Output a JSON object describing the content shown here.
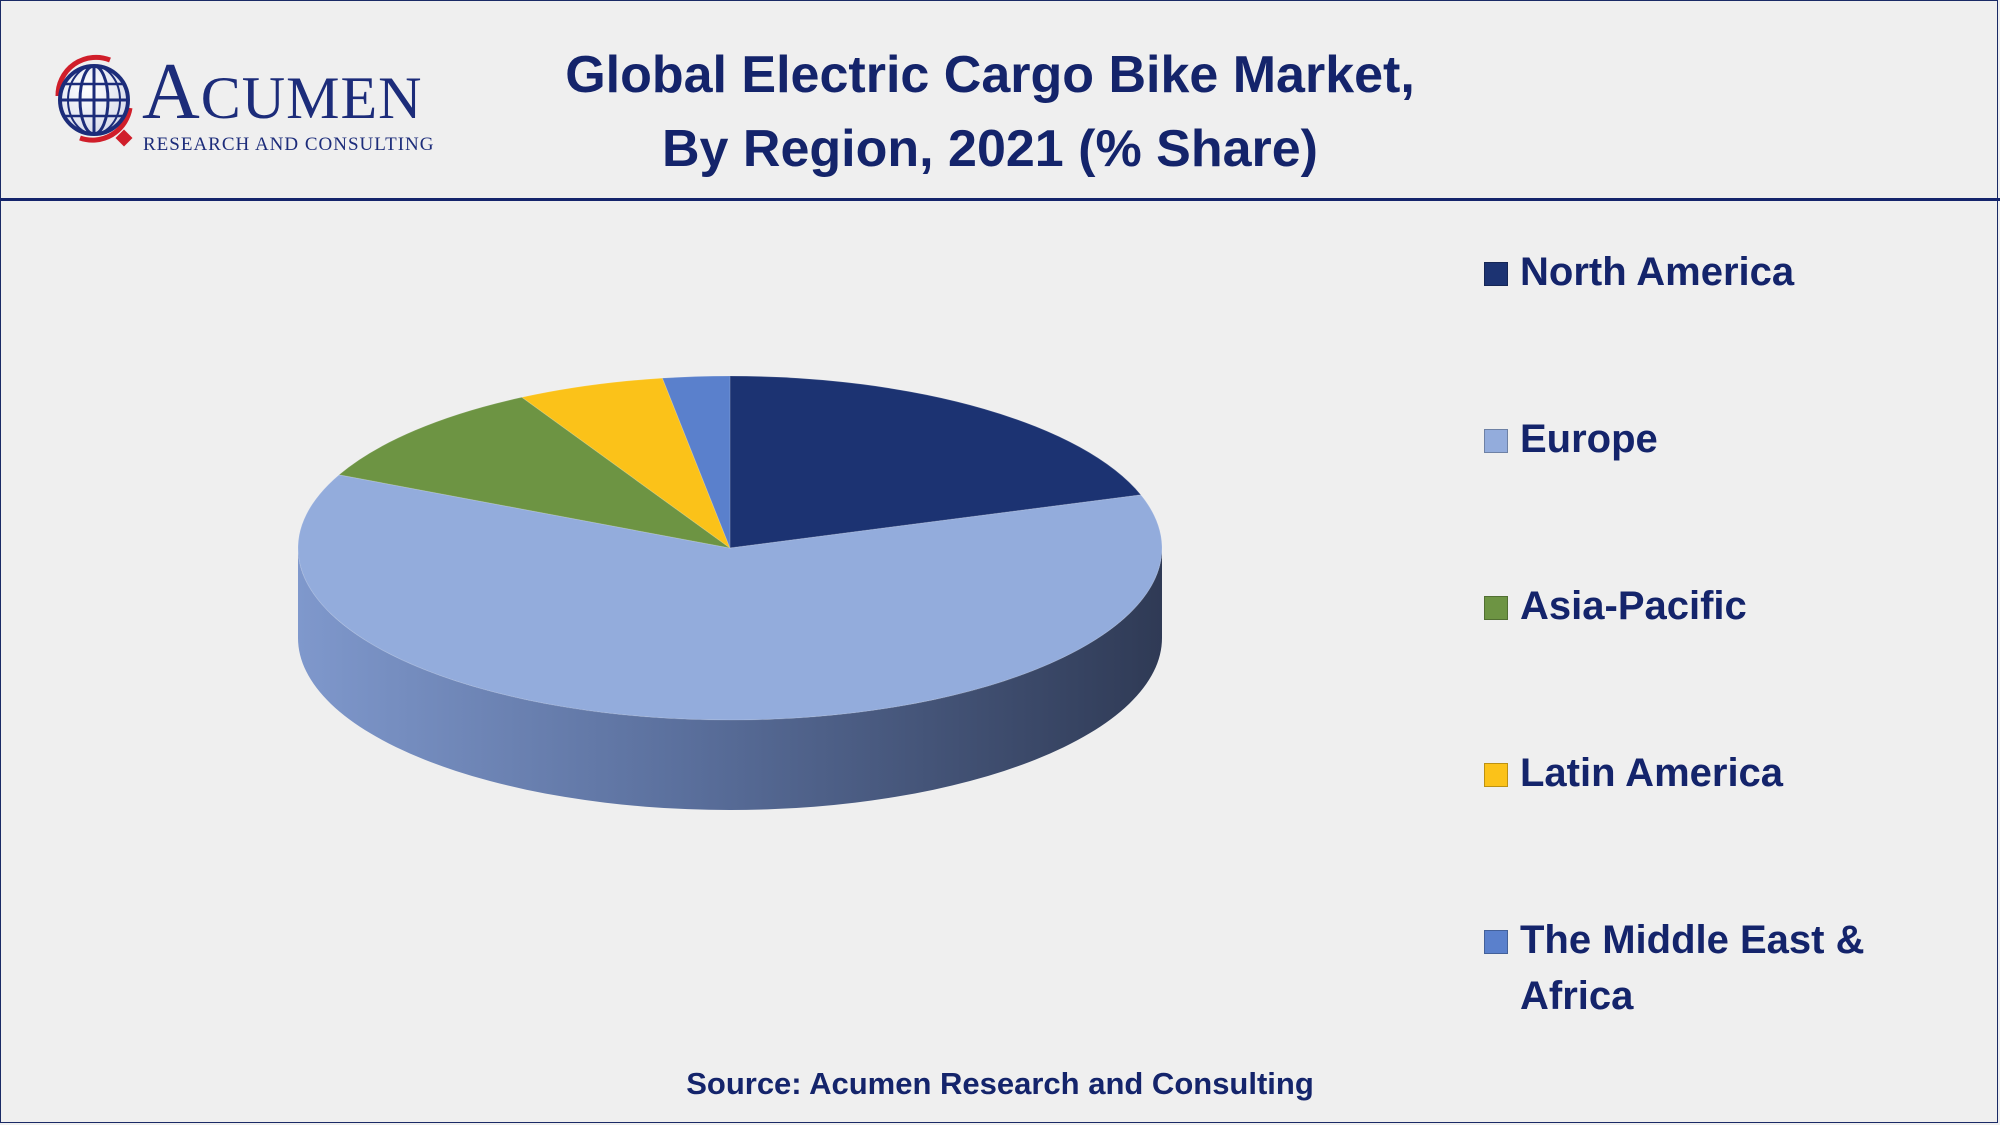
{
  "logo": {
    "word_big": "A",
    "word_rest": "CUMEN",
    "subtitle": "RESEARCH AND CONSULTING"
  },
  "title": {
    "line1": "Global Electric Cargo Bike Market,",
    "line2": "By Region, 2021 (% Share)"
  },
  "source": "Source: Acumen Research and Consulting",
  "chart_data": {
    "type": "pie",
    "title": "Global Electric Cargo Bike Market, By Region, 2021 (% Share)",
    "legend_position": "right",
    "slices": [
      {
        "label": "North America",
        "value": 20,
        "color": "#1c3372"
      },
      {
        "label": "Europe",
        "value": 62,
        "color": "#93acdc"
      },
      {
        "label": "Asia-Pacific",
        "value": 10,
        "color": "#6d9443"
      },
      {
        "label": "Latin America",
        "value": 5.5,
        "color": "#fbc219"
      },
      {
        "label": "The Middle East & Africa",
        "value": 2.5,
        "color": "#5a80cc"
      }
    ]
  }
}
